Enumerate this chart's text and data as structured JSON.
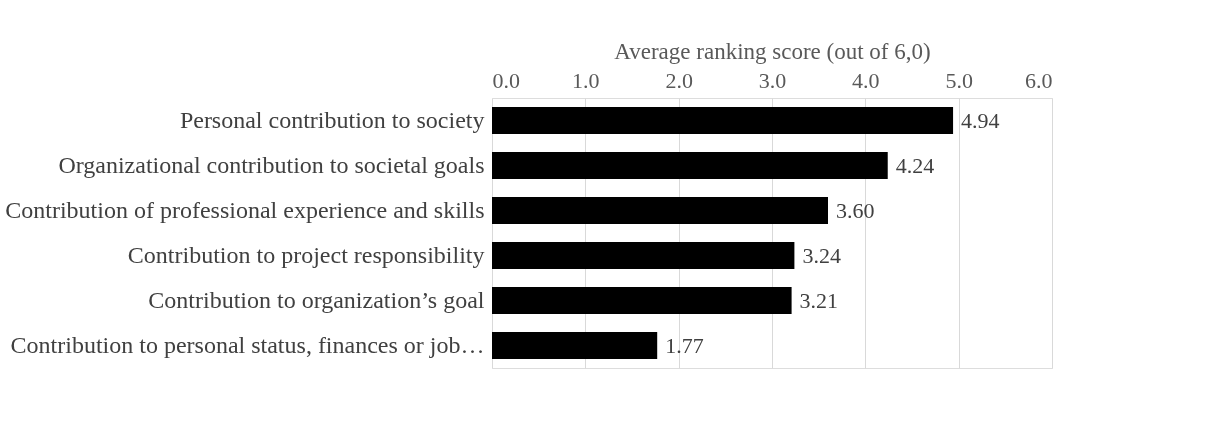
{
  "chart_data": {
    "type": "bar",
    "orientation": "horizontal",
    "xlabel": "Average ranking score (out of 6,0)",
    "categories": [
      "Personal contribution to society",
      "Organizational contribution to societal goals",
      "Contribution of professional experience and skills",
      "Contribution to project responsibility",
      "Contribution to organization’s goal",
      "Contribution to personal status, finances or job…"
    ],
    "values": [
      4.94,
      4.24,
      3.6,
      3.24,
      3.21,
      1.77
    ],
    "color": "#000000",
    "xlim": [
      0,
      6
    ],
    "xticks": [
      {
        "value": 0,
        "label": "0.0"
      },
      {
        "value": 1,
        "label": "1.0"
      },
      {
        "value": 2,
        "label": "2.0"
      },
      {
        "value": 3,
        "label": "3.0"
      },
      {
        "value": 4,
        "label": "4.0"
      },
      {
        "value": 5,
        "label": "5.0"
      },
      {
        "value": 6,
        "label": "6.0"
      }
    ],
    "value_labels": [
      "4.94",
      "4.24",
      "3.60",
      "3.24",
      "3.21",
      "1.77"
    ],
    "grid": "x"
  }
}
